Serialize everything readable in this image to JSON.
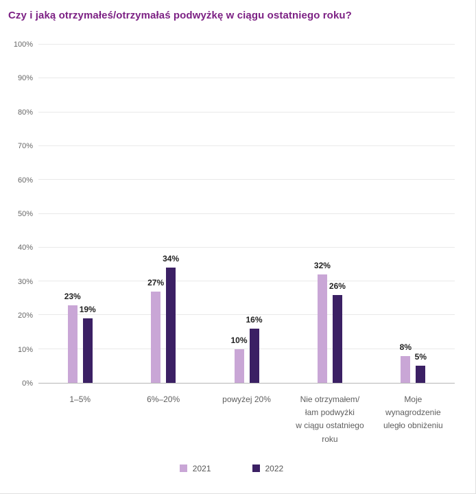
{
  "page": {
    "title": "Czy i jaką otrzymałeś/otrzymałaś podwyżkę w ciągu ostatniego roku?"
  },
  "colors": {
    "title_accent": "#7c2184",
    "series_2021": "#c9a6d6",
    "series_2022": "#3b2064",
    "gridline": "#e9e9e9",
    "axis_line": "#b5b5b5"
  },
  "chart_data": {
    "type": "bar",
    "title": "Czy i jaką otrzymałeś/otrzymałaś podwyżkę w ciągu ostatniego roku?",
    "categories": [
      "1–5%",
      "6%–20%",
      "powyżej 20%",
      "Nie otrzymałem/\nłam podwyżki\nw ciągu ostatniego\nroku",
      "Moje\nwynagrodzenie\nuległo obniżeniu"
    ],
    "series": [
      {
        "name": "2021",
        "color": "#c9a6d6",
        "values": [
          23,
          27,
          10,
          32,
          8
        ]
      },
      {
        "name": "2022",
        "color": "#3b2064",
        "values": [
          19,
          34,
          16,
          26,
          5
        ]
      }
    ],
    "value_suffix": "%",
    "xlabel": "",
    "ylabel": "",
    "ylim": [
      0,
      100
    ],
    "ytick_step": 10,
    "ytick_suffix": "%",
    "grid": true,
    "legend_position": "bottom"
  }
}
